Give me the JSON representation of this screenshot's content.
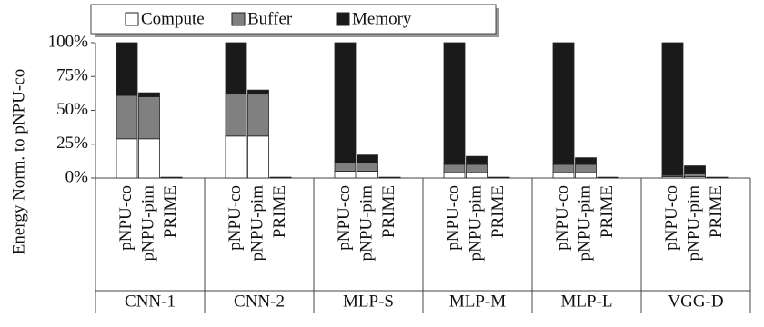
{
  "chart_data": {
    "type": "grouped-stacked-bar",
    "y_label": "Energy Norm. to pNPU-co",
    "categories": [
      "CNN-1",
      "CNN-2",
      "MLP-S",
      "MLP-M",
      "MLP-L",
      "VGG-D"
    ],
    "subcategories": [
      "pNPU-co",
      "pNPU-pim",
      "PRIME"
    ],
    "series": [
      {
        "name": "Compute",
        "color": "#ffffff",
        "values": [
          [
            29,
            29,
            0.2
          ],
          [
            31,
            31,
            0.2
          ],
          [
            5,
            5,
            0.2
          ],
          [
            4,
            4,
            0.2
          ],
          [
            4,
            4,
            0.2
          ],
          [
            1,
            1,
            0.2
          ]
        ]
      },
      {
        "name": "Buffer",
        "color": "#808080",
        "values": [
          [
            32,
            31,
            0.1
          ],
          [
            31,
            31,
            0.1
          ],
          [
            6,
            6,
            0.1
          ],
          [
            6,
            6,
            0.1
          ],
          [
            6,
            6,
            0.1
          ],
          [
            1,
            2,
            0.1
          ]
        ]
      },
      {
        "name": "Memory",
        "color": "#1a1a1a",
        "values": [
          [
            39,
            3,
            0.3
          ],
          [
            38,
            3,
            0.3
          ],
          [
            89,
            6,
            0.3
          ],
          [
            90,
            6,
            0.3
          ],
          [
            90,
            5,
            0.3
          ],
          [
            98,
            6,
            0.3
          ]
        ]
      }
    ],
    "ylim": [
      0,
      100
    ],
    "yticks": [
      {
        "value": 0,
        "label": "0%"
      },
      {
        "value": 25,
        "label": "25%"
      },
      {
        "value": 50,
        "label": "50%"
      },
      {
        "value": 75,
        "label": "75%"
      },
      {
        "value": 100,
        "label": "100%"
      }
    ],
    "legend_position": "top"
  }
}
